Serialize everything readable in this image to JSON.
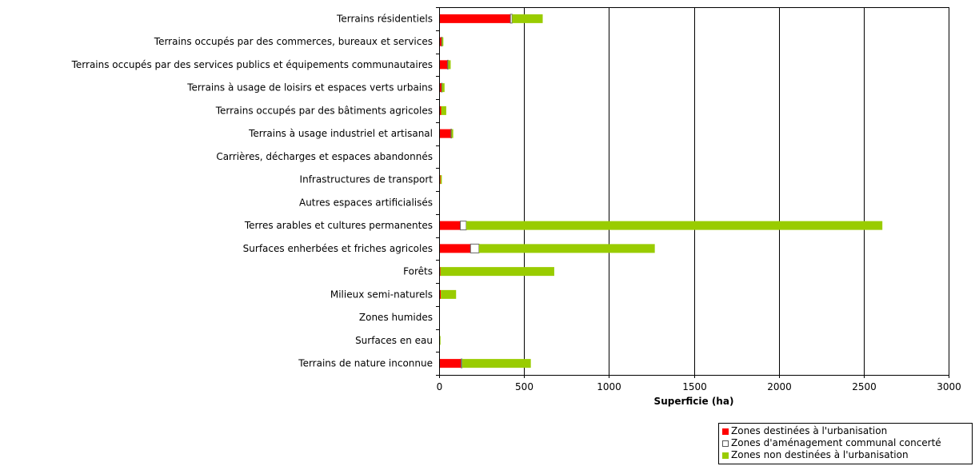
{
  "chart_data": {
    "type": "bar",
    "orientation": "horizontal",
    "stacked": true,
    "categories": [
      "Terrains résidentiels",
      "Terrains occupés par des commerces, bureaux et services",
      "Terrains occupés par des services publics et équipements communautaires",
      "Terrains à usage de loisirs et espaces verts urbains",
      "Terrains occupés par des bâtiments agricoles",
      "Terrains à usage industriel et artisanal",
      "Carrières, décharges et espaces abandonnés",
      "Infrastructures de transport",
      "Autres espaces artificialisés",
      "Terres arables et cultures permanentes",
      "Surfaces enherbées et friches agricoles",
      "Forêts",
      "Milieux semi-naturels",
      "Zones humides",
      "Surfaces en eau",
      "Terrains de nature inconnue"
    ],
    "series": [
      {
        "name": "Zones destinées à l'urbanisation",
        "color": "#ff0000",
        "values": [
          420,
          15,
          50,
          15,
          12,
          70,
          0,
          8,
          0,
          125,
          185,
          8,
          10,
          0,
          2,
          130
        ]
      },
      {
        "name": "Zones d'aménagement communal concerté",
        "color": "#ffffff",
        "values": [
          10,
          2,
          3,
          2,
          0,
          3,
          0,
          0,
          0,
          35,
          50,
          0,
          0,
          0,
          0,
          5
        ]
      },
      {
        "name": "Zones non destinées à l'urbanisation",
        "color": "#99cc00",
        "values": [
          180,
          8,
          15,
          15,
          30,
          10,
          0,
          8,
          0,
          2450,
          1035,
          670,
          90,
          0,
          6,
          405
        ]
      }
    ],
    "xlabel": "Superficie (ha)",
    "xlim": [
      0,
      3000
    ],
    "xticks": [
      "0",
      "500",
      "1000",
      "1500",
      "2000",
      "2500",
      "3000"
    ],
    "grid": "vertical",
    "legend_position": "bottom-right"
  }
}
